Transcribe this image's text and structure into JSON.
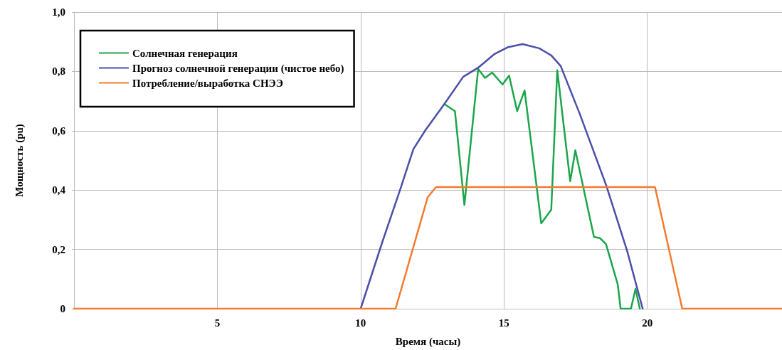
{
  "chart_data": {
    "type": "line",
    "xlabel": "Время (часы)",
    "ylabel": "Мощность (pu)",
    "legend": "top left",
    "grid": true,
    "marker": "none",
    "line_style": "solid",
    "xlim": [
      0,
      24.7
    ],
    "xticks": [
      {
        "value": 0,
        "label": null
      },
      5,
      10,
      15,
      20
    ],
    "ylim": [
      0,
      1
    ],
    "yticks": [
      0,
      {
        "value": 0.2,
        "label": "0,2"
      },
      {
        "value": 0.4,
        "label": "0,4"
      },
      {
        "value": 0.6,
        "label": "0,6"
      },
      {
        "value": 0.8,
        "label": "0,8"
      },
      {
        "value": 1,
        "label": "1,0"
      }
    ],
    "series": [
      {
        "name": "Солнечная генерация",
        "color": "#1aa64a",
        "x": [
          12.92,
          13.29,
          13.62,
          14.1,
          14.34,
          14.59,
          14.95,
          15.18,
          15.46,
          15.72,
          16.3,
          16.65,
          16.86,
          17.31,
          17.49,
          18.14,
          18.35,
          18.56,
          18.97,
          19.07,
          19.43,
          19.59,
          19.74
        ],
        "values": [
          0.69,
          0.666,
          0.35,
          0.808,
          0.778,
          0.796,
          0.756,
          0.786,
          0.666,
          0.736,
          0.288,
          0.334,
          0.804,
          0.43,
          0.534,
          0.242,
          0.238,
          0.218,
          0.082,
          0,
          0,
          0.067,
          0
        ]
      },
      {
        "name": "Прогноз солнечной генерации (чистое небо)",
        "color": "#4a4fa8",
        "x": [
          10,
          10.76,
          11.38,
          11.84,
          12.26,
          12.92,
          13.58,
          14.12,
          14.66,
          15.15,
          15.65,
          16.23,
          16.65,
          16.98,
          17.64,
          18.56,
          19.3,
          19.84
        ],
        "values": [
          0,
          0.226,
          0.402,
          0.538,
          0.602,
          0.69,
          0.782,
          0.814,
          0.858,
          0.882,
          0.892,
          0.878,
          0.854,
          0.818,
          0.658,
          0.418,
          0.194,
          0
        ]
      },
      {
        "name": "Потребление/выработка СНЭЭ",
        "color": "#f47a2e",
        "x": [
          0,
          11.22,
          12.34,
          12.63,
          20.27,
          21.22,
          24.7
        ],
        "values": [
          0,
          0,
          0.376,
          0.41,
          0.41,
          0,
          0
        ]
      }
    ]
  }
}
